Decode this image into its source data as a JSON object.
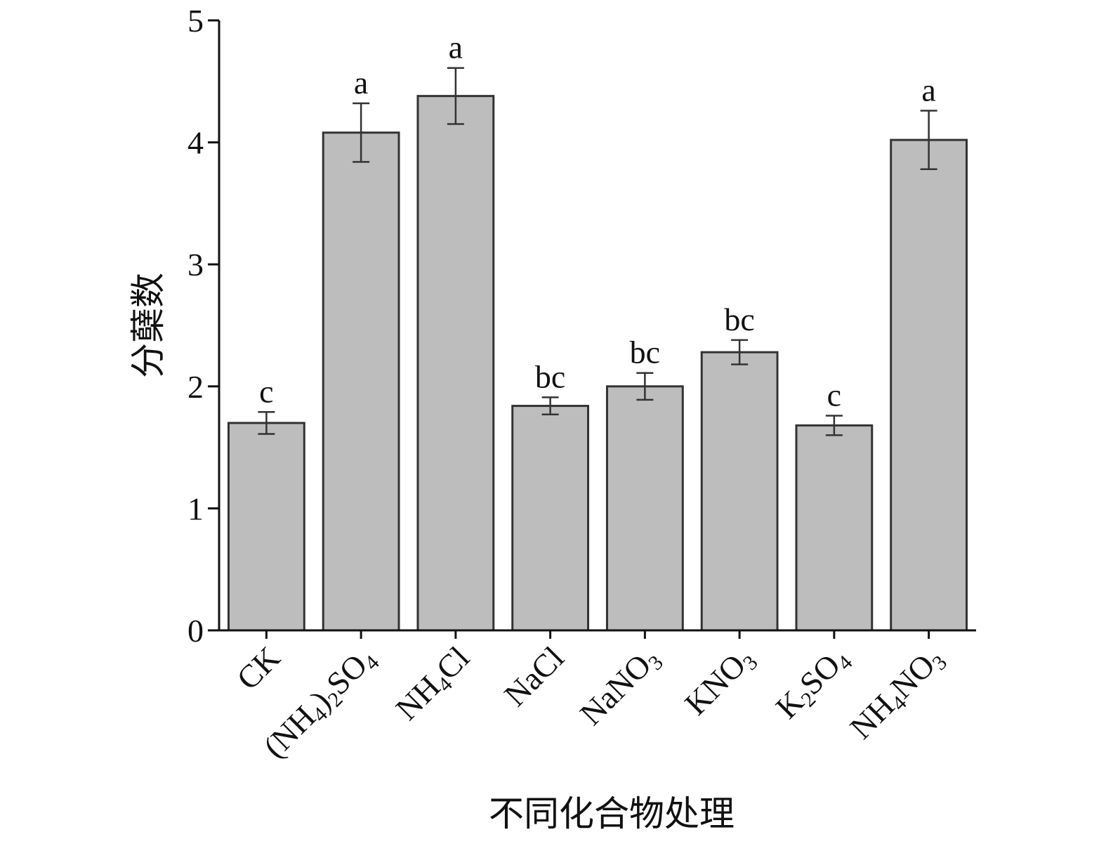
{
  "chart_data": {
    "type": "bar",
    "title": "",
    "xlabel": "不同化合物处理",
    "ylabel": "分蘖数",
    "ylim": [
      0,
      5
    ],
    "yticks": [
      0,
      1,
      2,
      3,
      4,
      5
    ],
    "grid": false,
    "categories": [
      "CK",
      "(NH4)2SO4",
      "NH4Cl",
      "NaCl",
      "NaNO3",
      "KNO3",
      "K2SO4",
      "NH4NO3"
    ],
    "category_parts": [
      [
        {
          "t": "CK",
          "sub": false
        }
      ],
      [
        {
          "t": "(NH",
          "sub": false
        },
        {
          "t": "4",
          "sub": true
        },
        {
          "t": ")",
          "sub": false
        },
        {
          "t": "2",
          "sub": true
        },
        {
          "t": "SO",
          "sub": false
        },
        {
          "t": "4",
          "sub": true
        }
      ],
      [
        {
          "t": "NH",
          "sub": false
        },
        {
          "t": "4",
          "sub": true
        },
        {
          "t": "Cl",
          "sub": false
        }
      ],
      [
        {
          "t": "NaCl",
          "sub": false
        }
      ],
      [
        {
          "t": "NaNO",
          "sub": false
        },
        {
          "t": "3",
          "sub": true
        }
      ],
      [
        {
          "t": "KNO",
          "sub": false
        },
        {
          "t": "3",
          "sub": true
        }
      ],
      [
        {
          "t": "K",
          "sub": false
        },
        {
          "t": "2",
          "sub": true
        },
        {
          "t": "SO",
          "sub": false
        },
        {
          "t": "4",
          "sub": true
        }
      ],
      [
        {
          "t": "NH",
          "sub": false
        },
        {
          "t": "4",
          "sub": true
        },
        {
          "t": "NO",
          "sub": false
        },
        {
          "t": "3",
          "sub": true
        }
      ]
    ],
    "values": [
      1.7,
      4.08,
      4.38,
      1.84,
      2.0,
      2.28,
      1.68,
      4.02
    ],
    "errors": [
      0.09,
      0.24,
      0.23,
      0.07,
      0.11,
      0.1,
      0.08,
      0.24
    ],
    "significance": [
      "c",
      "a",
      "a",
      "bc",
      "bc",
      "bc",
      "c",
      "a"
    ],
    "bar_color": "#bdbdbd",
    "bar_edge_color": "#333333"
  }
}
